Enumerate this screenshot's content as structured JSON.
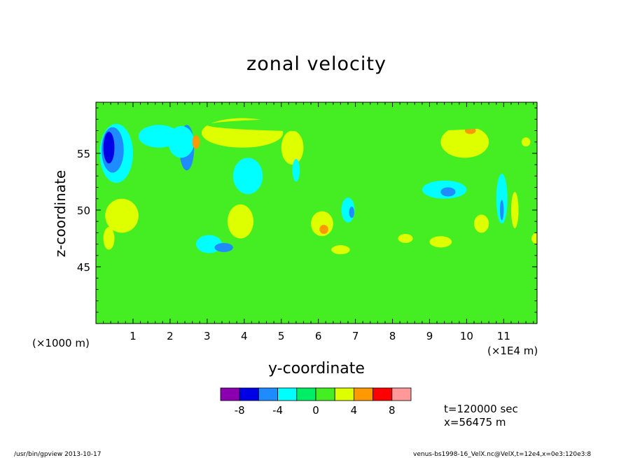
{
  "chart_data": {
    "type": "heatmap",
    "title": "zonal velocity",
    "xlabel": "y-coordinate",
    "ylabel": "z-coordinate",
    "x_unit_left": "(×1000 m)",
    "x_unit_right": "(×1E4 m)",
    "x_ticks": [
      1,
      2,
      3,
      4,
      5,
      6,
      7,
      8,
      9,
      10,
      11
    ],
    "y_ticks": [
      45,
      50,
      55
    ],
    "xlim": [
      0,
      11.9
    ],
    "ylim": [
      40,
      59.5
    ],
    "colorbar": {
      "levels": [
        -10,
        -8,
        -6,
        -4,
        -2,
        0,
        2,
        4,
        6,
        8,
        10
      ],
      "tick_labels": [
        "-8",
        "-4",
        "0",
        "4",
        "8"
      ],
      "tick_values": [
        -8,
        -4,
        0,
        4,
        8
      ],
      "colors": [
        "#8a00b0",
        "#0000e6",
        "#1e8cff",
        "#00ffff",
        "#00ee66",
        "#44ee22",
        "#ddff00",
        "#ff9900",
        "#ff0000",
        "#ff9999"
      ]
    },
    "background_value": 1,
    "features": [
      {
        "x": 0.55,
        "y": 55.0,
        "rx": 0.45,
        "ry": 2.6,
        "value": -3
      },
      {
        "x": 0.45,
        "y": 55.3,
        "rx": 0.3,
        "ry": 2.0,
        "value": -6
      },
      {
        "x": 0.35,
        "y": 55.5,
        "rx": 0.15,
        "ry": 1.4,
        "value": -7
      },
      {
        "x": 1.7,
        "y": 56.5,
        "rx": 0.55,
        "ry": 1.0,
        "value": -3
      },
      {
        "x": 2.45,
        "y": 55.5,
        "rx": 0.2,
        "ry": 2.0,
        "value": -6
      },
      {
        "x": 2.3,
        "y": 56.0,
        "rx": 0.35,
        "ry": 1.4,
        "value": -3
      },
      {
        "x": 0.7,
        "y": 49.5,
        "rx": 0.45,
        "ry": 1.5,
        "value": 3
      },
      {
        "x": 0.35,
        "y": 47.5,
        "rx": 0.15,
        "ry": 1.0,
        "value": 3
      },
      {
        "x": 2.7,
        "y": 56.0,
        "rx": 0.1,
        "ry": 0.6,
        "value": 5
      },
      {
        "x": 3.05,
        "y": 47.0,
        "rx": 0.35,
        "ry": 0.8,
        "value": -3
      },
      {
        "x": 3.45,
        "y": 46.7,
        "rx": 0.25,
        "ry": 0.4,
        "value": -6
      },
      {
        "x": 3.9,
        "y": 49.0,
        "rx": 0.35,
        "ry": 1.5,
        "value": 3
      },
      {
        "x": 3.95,
        "y": 56.8,
        "rx": 1.1,
        "ry": 1.3,
        "value": 3
      },
      {
        "x": 4.1,
        "y": 53.0,
        "rx": 0.4,
        "ry": 1.6,
        "value": -3
      },
      {
        "x": 5.3,
        "y": 55.5,
        "rx": 0.3,
        "ry": 1.5,
        "value": 3
      },
      {
        "x": 5.4,
        "y": 53.5,
        "rx": 0.1,
        "ry": 1.0,
        "value": -3
      },
      {
        "x": 6.1,
        "y": 48.8,
        "rx": 0.3,
        "ry": 1.1,
        "value": 3
      },
      {
        "x": 6.15,
        "y": 48.3,
        "rx": 0.12,
        "ry": 0.4,
        "value": 5
      },
      {
        "x": 6.6,
        "y": 46.5,
        "rx": 0.25,
        "ry": 0.4,
        "value": 3
      },
      {
        "x": 6.8,
        "y": 50.0,
        "rx": 0.18,
        "ry": 1.1,
        "value": -3
      },
      {
        "x": 6.9,
        "y": 49.8,
        "rx": 0.07,
        "ry": 0.5,
        "value": -6
      },
      {
        "x": 8.35,
        "y": 47.5,
        "rx": 0.2,
        "ry": 0.4,
        "value": 3
      },
      {
        "x": 9.3,
        "y": 47.2,
        "rx": 0.3,
        "ry": 0.5,
        "value": 3
      },
      {
        "x": 9.4,
        "y": 51.8,
        "rx": 0.6,
        "ry": 0.8,
        "value": -3
      },
      {
        "x": 9.5,
        "y": 51.6,
        "rx": 0.2,
        "ry": 0.4,
        "value": -6
      },
      {
        "x": 9.95,
        "y": 56.0,
        "rx": 0.65,
        "ry": 1.4,
        "value": 3
      },
      {
        "x": 10.1,
        "y": 57.0,
        "rx": 0.15,
        "ry": 0.3,
        "value": 5
      },
      {
        "x": 10.4,
        "y": 48.8,
        "rx": 0.2,
        "ry": 0.8,
        "value": 3
      },
      {
        "x": 10.95,
        "y": 51.0,
        "rx": 0.15,
        "ry": 2.2,
        "value": -3
      },
      {
        "x": 10.95,
        "y": 50.0,
        "rx": 0.05,
        "ry": 0.9,
        "value": -6
      },
      {
        "x": 11.3,
        "y": 50.0,
        "rx": 0.1,
        "ry": 1.6,
        "value": 3
      },
      {
        "x": 11.6,
        "y": 56.0,
        "rx": 0.12,
        "ry": 0.4,
        "value": 3
      },
      {
        "x": 11.9,
        "y": 47.5,
        "rx": 0.15,
        "ry": 0.5,
        "value": 3
      },
      {
        "x": 7.0,
        "y": 57.5,
        "rx": 4.0,
        "ry": 0.6,
        "value": 0
      },
      {
        "x": 4.0,
        "y": 42.5,
        "rx": 3.0,
        "ry": 1.2,
        "value": 0
      },
      {
        "x": 9.0,
        "y": 43.0,
        "rx": 2.5,
        "ry": 1.5,
        "value": 0
      }
    ],
    "annotations": {
      "time": "t=120000 sec",
      "x_position": "x=56475 m"
    }
  },
  "footer": {
    "left": "/usr/bin/gpview   2013-10-17",
    "right": "venus-bs1998-16_VelX.nc@VelX,t=12e4,x=0e3:120e3:8"
  }
}
